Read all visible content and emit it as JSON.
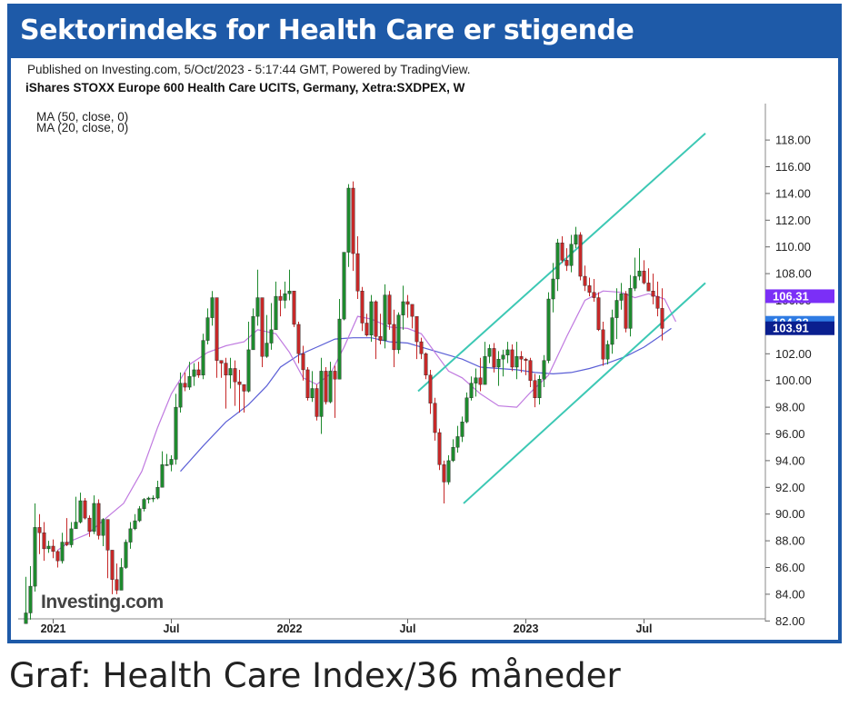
{
  "header": {
    "title": "Sektorindeks for Health Care er stigende"
  },
  "caption": "Graf: Health Care Index/36 måneder",
  "chart_data": {
    "type": "candlestick",
    "published_line": "Published on Investing.com, 5/Oct/2023 - 5:17:44 GMT, Powered by TradingView.",
    "instrument": "iShares STOXX Europe 600 Health Care UCITS, Germany, Xetra:SXDPEX, W",
    "indicators": [
      "MA (50, close, 0)",
      "MA (20, close, 0)"
    ],
    "watermark": "Investing.com",
    "x_ticks": [
      {
        "label": "2021",
        "t": 6
      },
      {
        "label": "Jul",
        "t": 32
      },
      {
        "label": "2022",
        "t": 58
      },
      {
        "label": "Jul",
        "t": 84
      },
      {
        "label": "2023",
        "t": 110
      },
      {
        "label": "Jul",
        "t": 136
      }
    ],
    "ylim": [
      81,
      119
    ],
    "y_ticks": [
      "118.00",
      "116.00",
      "114.00",
      "112.00",
      "110.00",
      "108.00",
      "106.00",
      "104.00",
      "102.00",
      "100.00",
      "98.00",
      "96.00",
      "94.00",
      "92.00",
      "90.00",
      "88.00",
      "86.00",
      "84.00",
      "82.00"
    ],
    "price_labels": [
      {
        "text": "106.31",
        "value": 106.31,
        "color": "#7b2ff7"
      },
      {
        "text": "104.32",
        "value": 104.32,
        "color": "#2f7be3"
      },
      {
        "text": "103.91",
        "value": 103.91,
        "color": "#0a1f8f"
      }
    ],
    "colors": {
      "up": "#1e8a2e",
      "down": "#c62828",
      "ma50": "#5b5fd6",
      "ma20": "#c07ae0",
      "channel": "#3cc8b4"
    },
    "closes": [
      82.6,
      84.6,
      89.0,
      88.6,
      87.4,
      87.6,
      87.2,
      86.5,
      87.9,
      87.7,
      88.9,
      89.4,
      91.0,
      89.7,
      88.7,
      90.8,
      88.4,
      89.6,
      87.3,
      85.1,
      84.3,
      86.0,
      87.9,
      88.9,
      89.5,
      90.4,
      91.1,
      91.2,
      91.2,
      92.0,
      93.7,
      93.7,
      94.1,
      98.0,
      99.8,
      99.5,
      100.3,
      100.8,
      100.4,
      103.0,
      104.7,
      106.2,
      101.5,
      101.3,
      100.4,
      100.9,
      99.9,
      99.7,
      99.2,
      102.3,
      104.8,
      106.2,
      101.8,
      102.8,
      103.8,
      106.3,
      106.0,
      106.5,
      106.7,
      104.2,
      102.0,
      100.8,
      98.7,
      99.4,
      97.3,
      100.7,
      98.4,
      100.7,
      100.1,
      104.6,
      109.6,
      114.4,
      109.5,
      106.7,
      104.3,
      103.4,
      105.9,
      103.3,
      103.0,
      106.4,
      104.2,
      102.3,
      104.9,
      105.9,
      105.7,
      104.8,
      102.9,
      102.0,
      100.4,
      98.3,
      96.1,
      93.7,
      92.4,
      94.0,
      95.0,
      95.8,
      96.9,
      98.7,
      99.8,
      100.2,
      99.7,
      101.8,
      102.4,
      101.0,
      101.6,
      101.9,
      102.3,
      101.0,
      101.8,
      101.6,
      101.5,
      100.0,
      98.7,
      100.1,
      101.5,
      106.1,
      107.6,
      110.3,
      109.0,
      108.6,
      110.2,
      110.9,
      107.8,
      107.1,
      106.6,
      106.2,
      103.8,
      101.6,
      102.7,
      104.7,
      106.0,
      106.5,
      103.9,
      106.9,
      107.8,
      108.2,
      107.3,
      106.7,
      106.3,
      105.4,
      103.9
    ],
    "ranges": [
      [
        82.3,
        85.3
      ],
      [
        82.1,
        86.1
      ],
      [
        84.2,
        90.8
      ],
      [
        87.0,
        90.0
      ],
      [
        86.5,
        89.4
      ],
      [
        87.1,
        88.0
      ],
      [
        86.7,
        88.1
      ],
      [
        86.0,
        87.3
      ],
      [
        86.3,
        88.6
      ],
      [
        87.6,
        89.7
      ],
      [
        87.5,
        89.4
      ],
      [
        89.3,
        91.3
      ],
      [
        89.3,
        91.6
      ],
      [
        89.6,
        91.2
      ],
      [
        88.3,
        89.9
      ],
      [
        88.5,
        91.4
      ],
      [
        88.1,
        91.1
      ],
      [
        87.6,
        89.7
      ],
      [
        85.2,
        87.4
      ],
      [
        84.0,
        85.7
      ],
      [
        84.0,
        86.3
      ],
      [
        84.4,
        86.7
      ],
      [
        85.9,
        88.1
      ],
      [
        87.4,
        89.4
      ],
      [
        88.8,
        90.0
      ],
      [
        89.4,
        90.6
      ],
      [
        90.2,
        91.2
      ],
      [
        90.8,
        91.3
      ],
      [
        90.9,
        91.4
      ],
      [
        91.1,
        92.5
      ],
      [
        92.0,
        94.7
      ],
      [
        93.6,
        94.5
      ],
      [
        93.2,
        94.4
      ],
      [
        93.7,
        99.0
      ],
      [
        97.6,
        100.6
      ],
      [
        99.2,
        100.6
      ],
      [
        99.3,
        101.4
      ],
      [
        99.6,
        101.3
      ],
      [
        100.2,
        101.4
      ],
      [
        100.1,
        103.5
      ],
      [
        102.7,
        105.4
      ],
      [
        104.1,
        106.7
      ],
      [
        100.2,
        101.8
      ],
      [
        100.2,
        101.5
      ],
      [
        97.9,
        101.7
      ],
      [
        99.4,
        101.7
      ],
      [
        98.1,
        101.5
      ],
      [
        97.6,
        100.8
      ],
      [
        97.6,
        99.6
      ],
      [
        99.1,
        104.4
      ],
      [
        102.4,
        105.4
      ],
      [
        104.1,
        108.3
      ],
      [
        101.0,
        104.3
      ],
      [
        101.7,
        104.9
      ],
      [
        102.3,
        105.8
      ],
      [
        105.1,
        107.4
      ],
      [
        104.8,
        106.8
      ],
      [
        105.4,
        107.4
      ],
      [
        106.0,
        108.3
      ],
      [
        104.0,
        106.7
      ],
      [
        101.3,
        104.4
      ],
      [
        100.0,
        102.6
      ],
      [
        98.5,
        101.0
      ],
      [
        98.4,
        100.7
      ],
      [
        97.0,
        99.7
      ],
      [
        96.0,
        101.7
      ],
      [
        98.2,
        101.0
      ],
      [
        98.3,
        101.4
      ],
      [
        97.2,
        101.1
      ],
      [
        100.1,
        106.1
      ],
      [
        104.5,
        109.6
      ],
      [
        108.5,
        114.7
      ],
      [
        108.2,
        114.9
      ],
      [
        106.1,
        110.8
      ],
      [
        103.7,
        107.0
      ],
      [
        103.3,
        105.0
      ],
      [
        102.9,
        106.4
      ],
      [
        101.6,
        106.0
      ],
      [
        102.7,
        105.0
      ],
      [
        102.4,
        107.2
      ],
      [
        103.8,
        106.7
      ],
      [
        101.0,
        105.3
      ],
      [
        102.0,
        105.1
      ],
      [
        103.8,
        107.1
      ],
      [
        104.7,
        106.4
      ],
      [
        103.9,
        105.3
      ],
      [
        101.6,
        104.2
      ],
      [
        101.6,
        103.2
      ],
      [
        100.1,
        102.1
      ],
      [
        97.5,
        100.8
      ],
      [
        95.5,
        98.7
      ],
      [
        93.3,
        96.4
      ],
      [
        90.8,
        94.0
      ],
      [
        92.2,
        94.4
      ],
      [
        93.9,
        95.6
      ],
      [
        94.6,
        96.6
      ],
      [
        95.4,
        97.3
      ],
      [
        96.8,
        99.1
      ],
      [
        98.5,
        100.3
      ],
      [
        98.8,
        100.9
      ],
      [
        99.2,
        101.7
      ],
      [
        100.5,
        102.9
      ],
      [
        101.3,
        102.7
      ],
      [
        100.6,
        102.8
      ],
      [
        99.6,
        102.2
      ],
      [
        100.3,
        102.3
      ],
      [
        101.3,
        102.9
      ],
      [
        100.7,
        102.7
      ],
      [
        100.1,
        102.9
      ],
      [
        100.6,
        102.2
      ],
      [
        100.4,
        101.7
      ],
      [
        99.5,
        101.7
      ],
      [
        98.0,
        100.5
      ],
      [
        98.2,
        100.4
      ],
      [
        99.5,
        101.9
      ],
      [
        101.3,
        106.6
      ],
      [
        105.1,
        108.8
      ],
      [
        106.7,
        110.6
      ],
      [
        108.8,
        110.8
      ],
      [
        108.2,
        109.9
      ],
      [
        108.1,
        110.9
      ],
      [
        109.9,
        111.5
      ],
      [
        107.5,
        111.1
      ],
      [
        106.7,
        108.6
      ],
      [
        106.3,
        107.7
      ],
      [
        105.9,
        107.6
      ],
      [
        103.7,
        106.6
      ],
      [
        101.1,
        104.4
      ],
      [
        101.2,
        103.0
      ],
      [
        102.0,
        105.3
      ],
      [
        103.1,
        106.9
      ],
      [
        105.3,
        107.3
      ],
      [
        103.6,
        106.7
      ],
      [
        103.3,
        107.9
      ],
      [
        106.7,
        109.2
      ],
      [
        107.5,
        109.9
      ],
      [
        107.2,
        109.0
      ],
      [
        106.7,
        108.4
      ],
      [
        105.7,
        108.0
      ],
      [
        104.8,
        107.4
      ],
      [
        103.0,
        106.9
      ]
    ],
    "ma20": [
      [
        7.0,
        87.3
      ],
      [
        10.0,
        88.0
      ],
      [
        13.5,
        88.5
      ],
      [
        18.0,
        89.8
      ],
      [
        21.5,
        90.8
      ],
      [
        25.5,
        93.2
      ],
      [
        29.0,
        96.5
      ],
      [
        32.0,
        99.0
      ],
      [
        36.0,
        101.2
      ],
      [
        40.0,
        102.1
      ],
      [
        44.0,
        102.6
      ],
      [
        48.0,
        102.9
      ],
      [
        51.0,
        103.8
      ],
      [
        55.0,
        103.5
      ],
      [
        58.0,
        102.1
      ],
      [
        61.0,
        100.2
      ],
      [
        64.0,
        99.7
      ],
      [
        67.0,
        100.5
      ],
      [
        70.0,
        102.5
      ],
      [
        73.0,
        104.8
      ],
      [
        76.0,
        104.6
      ],
      [
        80.0,
        104.0
      ],
      [
        84.0,
        103.9
      ],
      [
        87.0,
        103.5
      ],
      [
        90.0,
        102.1
      ],
      [
        93.0,
        100.7
      ],
      [
        96.0,
        100.2
      ],
      [
        100.0,
        99.0
      ],
      [
        104.0,
        98.1
      ],
      [
        108.0,
        98.0
      ],
      [
        111.0,
        99.1
      ],
      [
        115.0,
        100.4
      ],
      [
        119.0,
        103.3
      ],
      [
        123.0,
        106.0
      ],
      [
        127.0,
        106.7
      ],
      [
        131.0,
        106.6
      ],
      [
        134.0,
        106.2
      ],
      [
        137.0,
        106.5
      ],
      [
        140.5,
        106.1
      ],
      [
        143.0,
        104.4
      ]
    ],
    "ma50": [
      [
        34.0,
        93.2
      ],
      [
        39.0,
        95.1
      ],
      [
        44.0,
        96.9
      ],
      [
        49.0,
        98.2
      ],
      [
        53.0,
        99.6
      ],
      [
        56.0,
        101.0
      ],
      [
        60.0,
        101.9
      ],
      [
        64.0,
        102.5
      ],
      [
        68.0,
        103.1
      ],
      [
        72.0,
        103.2
      ],
      [
        76.0,
        103.2
      ],
      [
        80.0,
        102.9
      ],
      [
        84.0,
        102.8
      ],
      [
        88.0,
        102.4
      ],
      [
        92.0,
        102.0
      ],
      [
        96.0,
        101.6
      ],
      [
        100.0,
        101.0
      ],
      [
        104.0,
        100.9
      ],
      [
        108.0,
        100.8
      ],
      [
        112.0,
        100.6
      ],
      [
        116.0,
        100.5
      ],
      [
        120.0,
        100.6
      ],
      [
        124.0,
        100.9
      ],
      [
        128.0,
        101.3
      ],
      [
        132.0,
        101.8
      ],
      [
        136.0,
        102.5
      ],
      [
        139.0,
        103.2
      ],
      [
        142.0,
        103.9
      ]
    ],
    "channel_lines": [
      {
        "from": [
          86.3,
          99.2
        ],
        "to": [
          149.5,
          118.5
        ]
      },
      {
        "from": [
          96.3,
          90.8
        ],
        "to": [
          149.5,
          107.3
        ]
      }
    ]
  }
}
